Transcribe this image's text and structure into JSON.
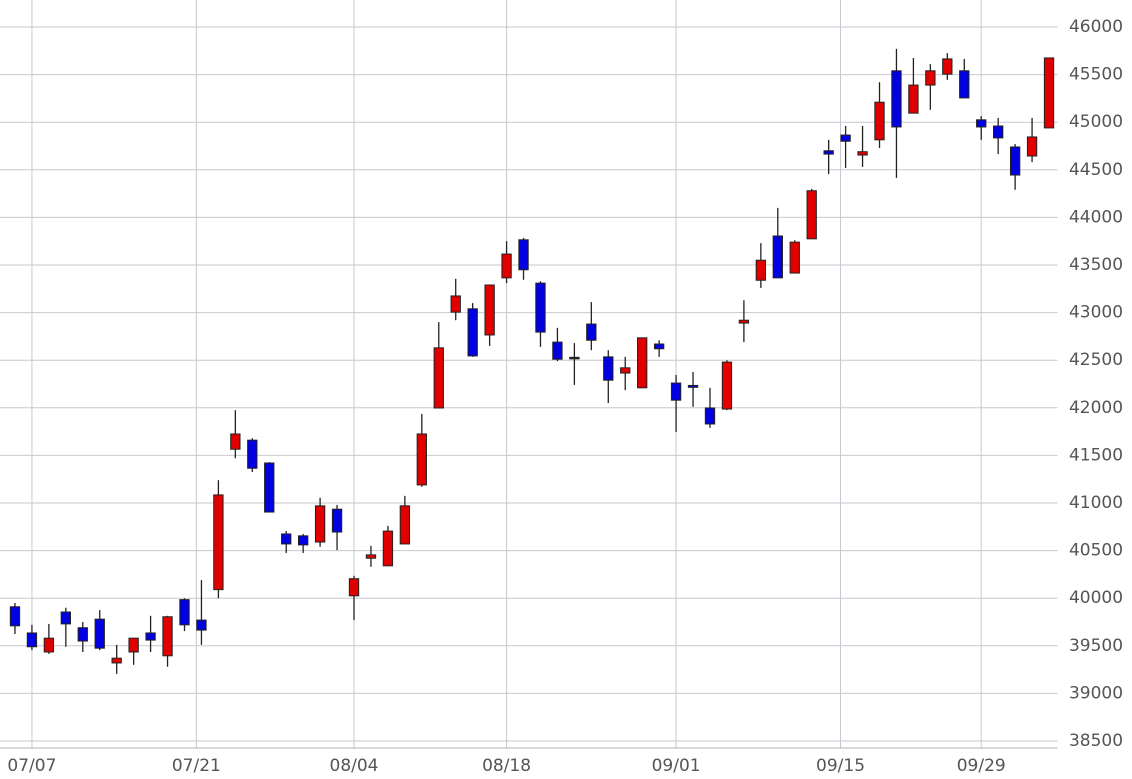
{
  "chart_data": {
    "type": "candlestick",
    "open": [
      39910,
      39635,
      39435,
      39855,
      39690,
      39780,
      39320,
      39435,
      39635,
      39395,
      39985,
      39770,
      40090,
      41565,
      41660,
      41420,
      40675,
      40655,
      40590,
      40935,
      40025,
      40420,
      40340,
      40570,
      41190,
      41998,
      43005,
      43040,
      42765,
      43365,
      43765,
      43310,
      42690,
      42530,
      42880,
      42535,
      42365,
      42210,
      42670,
      42260,
      42235,
      41998,
      41987,
      42890,
      43340,
      43805,
      43415,
      43775,
      44700,
      44865,
      44655,
      44815,
      45540,
      45095,
      45390,
      45505,
      45540,
      45025,
      44960,
      44740,
      44645,
      44940
    ],
    "high": [
      39950,
      39720,
      39730,
      39900,
      39750,
      39875,
      39510,
      39580,
      39815,
      39815,
      40000,
      40190,
      41240,
      41975,
      41680,
      41430,
      40705,
      40675,
      41055,
      40980,
      40235,
      40550,
      40760,
      41075,
      41935,
      42900,
      43355,
      43100,
      43290,
      43750,
      43785,
      43330,
      42840,
      42680,
      43110,
      42605,
      42535,
      42735,
      42710,
      42345,
      42375,
      42210,
      42500,
      43130,
      43730,
      44100,
      43760,
      44300,
      44815,
      44960,
      44960,
      45420,
      45770,
      45675,
      45610,
      45725,
      45665,
      45065,
      45045,
      44770,
      45045,
      45675
    ],
    "low": [
      39624,
      39455,
      39415,
      39490,
      39435,
      39455,
      39205,
      39300,
      39435,
      39280,
      39655,
      39510,
      40000,
      41470,
      41325,
      40905,
      40475,
      40475,
      40540,
      40505,
      39770,
      40330,
      40340,
      40570,
      41170,
      41998,
      42920,
      42535,
      42650,
      43310,
      43345,
      42640,
      42490,
      42240,
      42605,
      42050,
      42185,
      42210,
      42535,
      41745,
      42010,
      41790,
      41975,
      42690,
      43260,
      43365,
      43415,
      43775,
      44455,
      44520,
      44530,
      44730,
      44415,
      45095,
      45130,
      45445,
      45255,
      44815,
      44665,
      44290,
      44580,
      44940
    ],
    "close": [
      39710,
      39490,
      39580,
      39730,
      39550,
      39475,
      39370,
      39580,
      39560,
      39805,
      39720,
      39665,
      41085,
      41725,
      41365,
      40905,
      40570,
      40560,
      40970,
      40695,
      40205,
      40455,
      40705,
      40970,
      41725,
      42630,
      43175,
      42545,
      43290,
      43615,
      43450,
      42795,
      42510,
      42530,
      42710,
      42290,
      42420,
      42735,
      42620,
      42080,
      42215,
      41830,
      42480,
      42920,
      43550,
      43365,
      43740,
      44280,
      44665,
      44800,
      44690,
      45210,
      44950,
      45390,
      45540,
      45665,
      45255,
      44950,
      44835,
      44445,
      44845,
      45675
    ],
    "up_color": "#e00000",
    "down_color": "#0000e0",
    "flat_color": "#222222",
    "xlim": [
      -0.5,
      61.5
    ],
    "xticks": [
      {
        "value": 1,
        "label": "07/07"
      },
      {
        "value": 10.7,
        "label": "07/21"
      },
      {
        "value": 20,
        "label": "08/04"
      },
      {
        "value": 29,
        "label": "08/18"
      },
      {
        "value": 39,
        "label": "09/01"
      },
      {
        "value": 48.7,
        "label": "09/15"
      },
      {
        "value": 57,
        "label": "09/29"
      }
    ],
    "ylim": [
      38500,
      46000
    ],
    "yticks": [
      38500,
      39000,
      39500,
      40000,
      40500,
      41000,
      41500,
      42000,
      42500,
      43000,
      43500,
      44000,
      44500,
      45000,
      45500,
      46000
    ],
    "grid": true
  }
}
